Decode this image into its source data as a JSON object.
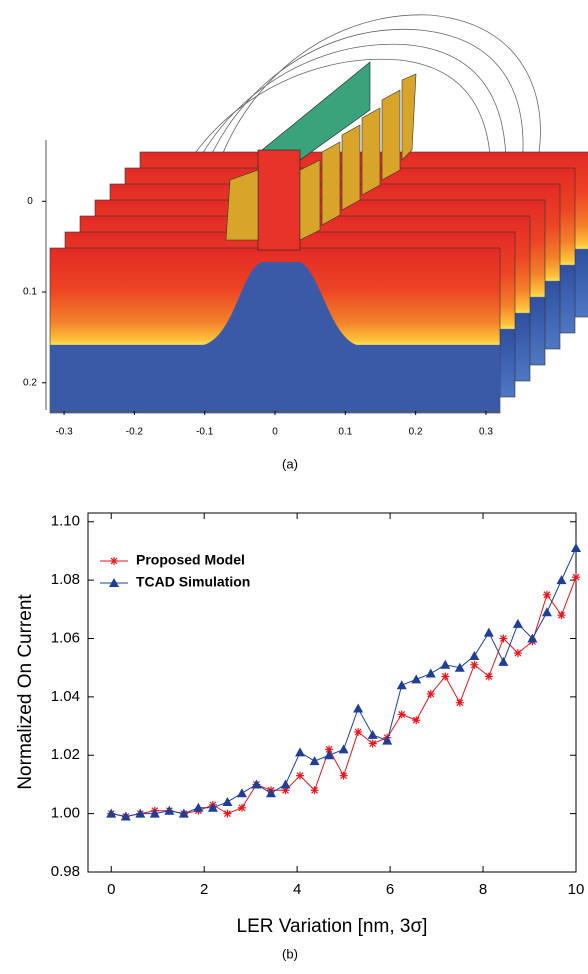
{
  "chart_data": [
    {
      "type": "image",
      "caption": "(a)",
      "xlim": [
        -0.32,
        0.32
      ],
      "xticks": [
        -0.3,
        -0.2,
        -0.1,
        0,
        0.1,
        0.2,
        0.3
      ],
      "ylim": [
        -0.04,
        0.23
      ],
      "yticks": [
        0,
        0.1,
        0.2
      ]
    },
    {
      "type": "line",
      "caption": "(b)",
      "x_label": "LER Variation [nm, 3σ]",
      "y_label": "Normalized On Current",
      "x": [
        0,
        0.3125,
        0.625,
        0.9375,
        1.25,
        1.5625,
        1.875,
        2.1875,
        2.5,
        2.8125,
        3.125,
        3.4375,
        3.75,
        4.0625,
        4.375,
        4.6875,
        5,
        5.3125,
        5.625,
        5.9375,
        6.25,
        6.5625,
        6.875,
        7.1875,
        7.5,
        7.8125,
        8.125,
        8.4375,
        8.75,
        9.0625,
        9.375,
        9.6875,
        10
      ],
      "series": [
        {
          "name": "Proposed Model",
          "color": "#e8141c",
          "marker": "asterisk",
          "values": [
            1.0,
            0.999,
            1.0,
            1.001,
            1.001,
            1.0,
            1.001,
            1.003,
            1.0,
            1.002,
            1.01,
            1.008,
            1.008,
            1.013,
            1.008,
            1.022,
            1.013,
            1.028,
            1.024,
            1.026,
            1.034,
            1.032,
            1.041,
            1.047,
            1.038,
            1.051,
            1.047,
            1.06,
            1.055,
            1.059,
            1.075,
            1.068,
            1.081
          ]
        },
        {
          "name": "TCAD Simulation",
          "color": "#1f3f94",
          "marker": "triangle",
          "values": [
            1.0,
            0.999,
            1.0,
            1.0,
            1.001,
            1.0,
            1.002,
            1.002,
            1.004,
            1.007,
            1.01,
            1.007,
            1.01,
            1.021,
            1.018,
            1.02,
            1.022,
            1.036,
            1.027,
            1.025,
            1.044,
            1.046,
            1.048,
            1.051,
            1.05,
            1.054,
            1.062,
            1.052,
            1.065,
            1.06,
            1.069,
            1.08,
            1.091
          ]
        }
      ],
      "xlim": [
        -0.5,
        10
      ],
      "xticks": [
        0,
        2,
        4,
        6,
        8,
        10
      ],
      "ylim": [
        0.98,
        1.103
      ],
      "yticks": [
        {
          "value": 0.98,
          "label": "0.98"
        },
        {
          "value": 1,
          "label": "1.00"
        },
        {
          "value": 1.02,
          "label": "1.02"
        },
        {
          "value": 1.04,
          "label": "1.04"
        },
        {
          "value": 1.06,
          "label": "1.06"
        },
        {
          "value": 1.08,
          "label": "1.08"
        },
        {
          "value": 1.1,
          "label": "1.10"
        }
      ],
      "legend": "upper left"
    }
  ]
}
